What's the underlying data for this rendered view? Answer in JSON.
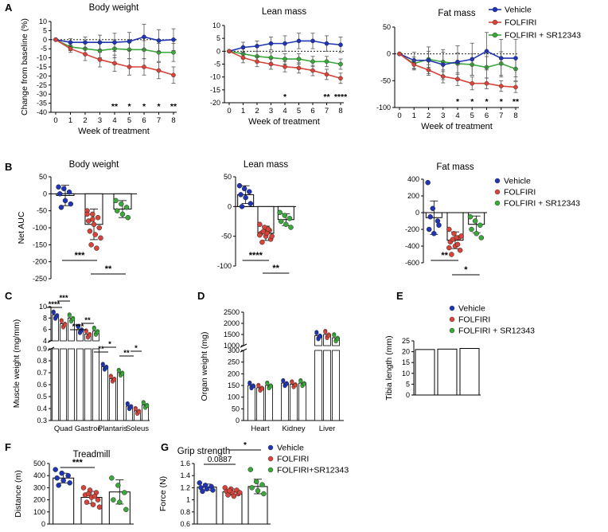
{
  "colors": {
    "vehicle": "#1f35b5",
    "folfiri": "#d9443a",
    "combo": "#3aa83a",
    "sig": "#000000"
  },
  "legend": {
    "vehicle": "Vehicle",
    "folfiri": "FOLFIRI",
    "combo": "FOLFIRI + SR12343",
    "combo_g": "FOLFIRI+SR12343"
  },
  "panels": {
    "A": "A",
    "B": "B",
    "C": "C",
    "D": "D",
    "E": "E",
    "F": "F",
    "G": "G"
  },
  "chart_data": [
    {
      "id": "A1",
      "type": "line",
      "title": "Body weight",
      "xlabel": "Week of treatment",
      "ylabel": "Change from baseline (%)",
      "x": [
        0,
        1,
        2,
        3,
        4,
        5,
        6,
        7,
        8
      ],
      "ylim": [
        -40,
        10
      ],
      "yticks": [
        10,
        5,
        0,
        -5,
        -10,
        -15,
        -20,
        -25,
        -30,
        -35,
        -40
      ],
      "series": [
        {
          "name": "Vehicle",
          "values": [
            0,
            -1.5,
            -1.5,
            -1.5,
            -1.5,
            -1,
            1.5,
            -0.5,
            0
          ],
          "err": [
            0,
            2,
            3,
            4,
            5,
            5,
            7,
            6,
            6
          ]
        },
        {
          "name": "FOLFIRI",
          "values": [
            0,
            -5,
            -8,
            -11,
            -13,
            -15,
            -15,
            -17,
            -19.5
          ],
          "err": [
            0,
            2,
            3.5,
            4,
            4.5,
            4.5,
            4.5,
            4.5,
            4.5
          ]
        },
        {
          "name": "FOLFIRI + SR12343",
          "values": [
            0,
            -4,
            -5,
            -6,
            -5,
            -5.5,
            -5.5,
            -7,
            -7
          ],
          "err": [
            0,
            2,
            3,
            4,
            5,
            5,
            5,
            5,
            5
          ]
        }
      ],
      "sig": [
        {
          "x": 4,
          "label": "**"
        },
        {
          "x": 5,
          "label": "*"
        },
        {
          "x": 6,
          "label": "*"
        },
        {
          "x": 7,
          "label": "*"
        },
        {
          "x": 8,
          "label": "**"
        }
      ]
    },
    {
      "id": "A2",
      "type": "line",
      "title": "Lean mass",
      "xlabel": "Week of treatment",
      "x": [
        0,
        1,
        2,
        3,
        4,
        5,
        6,
        7,
        8
      ],
      "ylim": [
        -20,
        10
      ],
      "yticks": [
        10,
        5,
        0,
        -5,
        -10,
        -15,
        -20
      ],
      "series": [
        {
          "name": "Vehicle",
          "values": [
            0,
            1.5,
            2,
            3,
            3,
            4,
            4,
            3,
            2.5
          ],
          "err": [
            0,
            2,
            2,
            2.5,
            3,
            3,
            3,
            3,
            3
          ]
        },
        {
          "name": "FOLFIRI",
          "values": [
            0,
            -2.5,
            -4,
            -5,
            -6,
            -6.5,
            -7.5,
            -9,
            -10.5
          ],
          "err": [
            0,
            2,
            2,
            2,
            2,
            2,
            2,
            2,
            2
          ]
        },
        {
          "name": "FOLFIRI + SR12343",
          "values": [
            0,
            -1,
            -2,
            -2.5,
            -3,
            -3,
            -4,
            -4,
            -5
          ],
          "err": [
            0,
            2,
            2,
            2,
            2,
            2,
            2,
            2,
            2
          ]
        }
      ],
      "sig": [
        {
          "x": 4,
          "label": "*"
        },
        {
          "x": 7,
          "label": "**"
        },
        {
          "x": 8,
          "label": "****"
        }
      ]
    },
    {
      "id": "A3",
      "type": "line",
      "title": "Fat mass",
      "xlabel": "Week of treatment",
      "x": [
        0,
        1,
        2,
        3,
        4,
        5,
        6,
        7,
        8
      ],
      "ylim": [
        -100,
        50
      ],
      "yticks": [
        50,
        0,
        -50,
        -100
      ],
      "series": [
        {
          "name": "Vehicle",
          "values": [
            0,
            -12,
            -12,
            -20,
            -15,
            -10,
            5,
            -8,
            -8
          ],
          "err": [
            0,
            15,
            25,
            28,
            30,
            30,
            35,
            35,
            35
          ]
        },
        {
          "name": "FOLFIRI",
          "values": [
            0,
            -20,
            -30,
            -42,
            -47,
            -55,
            -55,
            -60,
            -62
          ],
          "err": [
            0,
            8,
            10,
            12,
            12,
            12,
            10,
            10,
            10
          ]
        },
        {
          "name": "FOLFIRI + SR12343",
          "values": [
            0,
            -18,
            -10,
            -15,
            -18,
            -20,
            -25,
            -18,
            -28
          ],
          "err": [
            0,
            12,
            15,
            18,
            20,
            20,
            20,
            22,
            22
          ]
        }
      ],
      "sig": [
        {
          "x": 4,
          "label": "*"
        },
        {
          "x": 5,
          "label": "*"
        },
        {
          "x": 6,
          "label": "*"
        },
        {
          "x": 7,
          "label": "*"
        },
        {
          "x": 8,
          "label": "**"
        }
      ]
    },
    {
      "id": "B1",
      "type": "bar",
      "title": "Body weight",
      "ylabel": "Net AUC",
      "ylim": [
        -250,
        50
      ],
      "yticks": [
        50,
        0,
        -50,
        -100,
        -150,
        -200,
        -250
      ],
      "categories": [
        "Vehicle",
        "FOLFIRI",
        "FOLFIRI + SR12343"
      ],
      "values": [
        -5,
        -90,
        -45
      ],
      "err": [
        30,
        45,
        25
      ],
      "points": [
        [
          20,
          15,
          5,
          0,
          -20,
          -30,
          -40
        ],
        [
          -50,
          -60,
          -70,
          -80,
          -90,
          -100,
          -110,
          -120,
          -130,
          -150,
          -160,
          -60,
          -75
        ],
        [
          -20,
          -30,
          -40,
          -50,
          -60,
          -70
        ]
      ],
      "brackets": [
        {
          "from": 0,
          "to": 1,
          "label": "***"
        },
        {
          "from": 1,
          "to": 2,
          "label": "**"
        }
      ]
    },
    {
      "id": "B2",
      "type": "bar",
      "title": "Lean mass",
      "ylim": [
        -100,
        50
      ],
      "yticks": [
        50,
        0,
        -50,
        -100
      ],
      "categories": [
        "Vehicle",
        "FOLFIRI",
        "FOLFIRI + SR12343"
      ],
      "values": [
        20,
        -45,
        -22
      ],
      "err": [
        15,
        12,
        10
      ],
      "points": [
        [
          35,
          30,
          25,
          20,
          15,
          5,
          0
        ],
        [
          -30,
          -35,
          -40,
          -45,
          -50,
          -55,
          -60,
          -45,
          -50,
          -42,
          -38,
          -48
        ],
        [
          -10,
          -15,
          -20,
          -25,
          -30,
          -35
        ]
      ],
      "brackets": [
        {
          "from": 0,
          "to": 1,
          "label": "****"
        },
        {
          "from": 1,
          "to": 2,
          "label": "**"
        }
      ]
    },
    {
      "id": "B3",
      "type": "bar",
      "title": "Fat mass",
      "ylim": [
        -600,
        400
      ],
      "yticks": [
        400,
        200,
        0,
        -200,
        -400,
        -600
      ],
      "categories": [
        "Vehicle",
        "FOLFIRI",
        "FOLFIRI + SR12343"
      ],
      "values": [
        -60,
        -330,
        -140
      ],
      "err": [
        200,
        100,
        100
      ],
      "points": [
        [
          360,
          50,
          -100,
          -200,
          -250,
          -150,
          -50
        ],
        [
          -200,
          -250,
          -300,
          -350,
          -400,
          -450,
          -500,
          -300,
          -280,
          -320,
          -380,
          -420
        ],
        [
          -50,
          -100,
          -150,
          -200,
          -250,
          -300
        ]
      ],
      "brackets": [
        {
          "from": 0,
          "to": 1,
          "label": "**"
        },
        {
          "from": 1,
          "to": 2,
          "label": "*"
        }
      ]
    },
    {
      "id": "C",
      "type": "bar",
      "ylabel": "Muscle weight (mg/mm)",
      "categories": [
        "Quad",
        "Gastroc",
        "Plantaris",
        "Soleus"
      ],
      "yticks_top": [
        10,
        8,
        6,
        4
      ],
      "yticks_bottom": [
        0.9,
        0.8,
        0.7,
        0.6,
        0.5,
        0.4,
        0.3
      ],
      "series": [
        {
          "name": "Vehicle",
          "values": [
            8.5,
            6.0,
            0.75,
            0.42
          ]
        },
        {
          "name": "FOLFIRI",
          "values": [
            7.0,
            5.2,
            0.65,
            0.38
          ]
        },
        {
          "name": "FOLFIRI + SR12343",
          "values": [
            8.0,
            5.7,
            0.7,
            0.43
          ]
        }
      ],
      "sig": [
        {
          "cat": 0,
          "label": "****"
        },
        {
          "cat": 0,
          "label": "***"
        },
        {
          "cat": 1,
          "label": "****"
        },
        {
          "cat": 1,
          "label": "**"
        },
        {
          "cat": 2,
          "label": "**"
        },
        {
          "cat": 2,
          "label": "*"
        },
        {
          "cat": 3,
          "label": "**"
        },
        {
          "cat": 3,
          "label": "*"
        }
      ]
    },
    {
      "id": "D",
      "type": "bar",
      "ylabel": "Organ weight (mg)",
      "categories": [
        "Heart",
        "Kidney",
        "Liver"
      ],
      "yticks_top": [
        2500,
        2000,
        1500,
        1000
      ],
      "yticks_bottom": [
        300,
        250,
        200,
        150,
        100,
        50,
        0
      ],
      "series": [
        {
          "name": "Vehicle",
          "values": [
            150,
            160,
            1450
          ]
        },
        {
          "name": "FOLFIRI",
          "values": [
            140,
            155,
            1500
          ]
        },
        {
          "name": "FOLFIRI + SR12343",
          "values": [
            150,
            160,
            1350
          ]
        }
      ]
    },
    {
      "id": "E",
      "type": "bar",
      "ylabel": "Tibia length (mm)",
      "ylim": [
        0,
        25
      ],
      "yticks": [
        25,
        20,
        15,
        10,
        5,
        0
      ],
      "categories": [
        "Vehicle",
        "FOLFIRI",
        "FOLFIRI + SR12343"
      ],
      "values": [
        21,
        21.2,
        21.5
      ]
    },
    {
      "id": "F",
      "type": "bar",
      "title": "Treadmill",
      "ylabel": "Distance (m)",
      "ylim": [
        0,
        500
      ],
      "yticks": [
        500,
        400,
        300,
        200,
        100,
        0
      ],
      "categories": [
        "Vehicle",
        "FOLFIRI",
        "FOLFIRI + SR12343"
      ],
      "values": [
        380,
        220,
        265
      ],
      "err": [
        40,
        50,
        100
      ],
      "points": [
        [
          450,
          420,
          400,
          380,
          360,
          340,
          320
        ],
        [
          300,
          280,
          260,
          240,
          220,
          200,
          180,
          160,
          140,
          250,
          230
        ],
        [
          380,
          320,
          260,
          200,
          180,
          120
        ]
      ],
      "brackets": [
        {
          "from": 0,
          "to": 1,
          "label": "***"
        }
      ]
    },
    {
      "id": "G",
      "type": "bar",
      "title": "Grip strength",
      "ylabel": "Force (N)",
      "ylim": [
        0.6,
        1.6
      ],
      "yticks": [
        1.6,
        1.4,
        1.2,
        1.0,
        0.8,
        0.6
      ],
      "categories": [
        "Vehicle",
        "FOLFIRI",
        "FOLFIRI+SR12343"
      ],
      "values": [
        1.21,
        1.13,
        1.22
      ],
      "err": [
        0.05,
        0.05,
        0.12
      ],
      "points": [
        [
          1.28,
          1.24,
          1.22,
          1.2,
          1.18,
          1.16,
          1.14
        ],
        [
          1.2,
          1.18,
          1.16,
          1.14,
          1.12,
          1.1,
          1.08,
          1.06,
          1.12,
          1.15
        ],
        [
          1.5,
          1.3,
          1.25,
          1.2,
          1.15,
          1.1
        ]
      ],
      "brackets": [
        {
          "from": 0,
          "to": 1,
          "label": "0.0887"
        },
        {
          "from": 1,
          "to": 2,
          "label": "*"
        }
      ]
    }
  ]
}
